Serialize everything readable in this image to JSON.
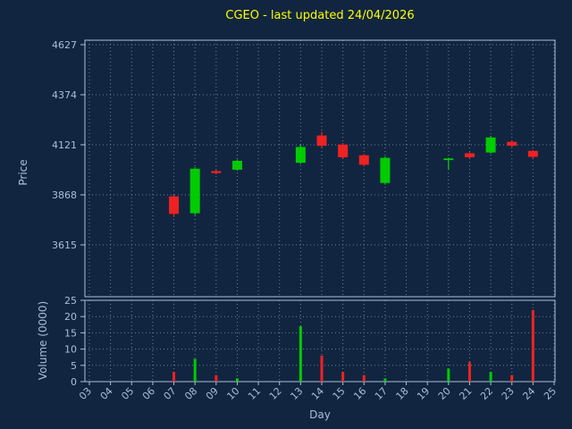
{
  "title": "CGEO - last updated 24/04/2026",
  "axes": {
    "price_label": "Price",
    "volume_label": "Volume (0000)",
    "x_label": "Day"
  },
  "colors": {
    "background": "#112540",
    "title": "#ffff00",
    "axis": "#a9bfd8",
    "grid": "#71808f",
    "up": "#00cc00",
    "down": "#ee2222"
  },
  "chart_data": {
    "type": "candlestick_with_volume",
    "title": "CGEO - last updated 24/04/2026",
    "xlabel": "Day",
    "ylabel_price": "Price",
    "ylabel_volume": "Volume (0000)",
    "legend": "none",
    "grid": "dotted",
    "price_axis": {
      "ticks": [
        3615,
        3868,
        4121,
        4374,
        4627
      ]
    },
    "volume_axis": {
      "ticks": [
        0,
        5,
        10,
        15,
        20,
        25
      ]
    },
    "x_tick_labels": [
      "03",
      "04",
      "05",
      "06",
      "07",
      "08",
      "09",
      "10",
      "11",
      "12",
      "13",
      "14",
      "15",
      "16",
      "17",
      "18",
      "19",
      "20",
      "21",
      "22",
      "23",
      "24",
      "25"
    ],
    "candles": [
      {
        "day": 7,
        "open": 3860,
        "high": 3868,
        "low": 3756,
        "close": 3772,
        "volume": 3
      },
      {
        "day": 8,
        "open": 3775,
        "high": 4008,
        "low": 3766,
        "close": 4000,
        "volume": 7
      },
      {
        "day": 9,
        "open": 3988,
        "high": 3994,
        "low": 3972,
        "close": 3978,
        "volume": 2
      },
      {
        "day": 10,
        "open": 3995,
        "high": 4046,
        "low": 3990,
        "close": 4040,
        "volume": 1
      },
      {
        "day": 13,
        "open": 4030,
        "high": 4122,
        "low": 4024,
        "close": 4110,
        "volume": 17
      },
      {
        "day": 14,
        "open": 4168,
        "high": 4186,
        "low": 4108,
        "close": 4116,
        "volume": 8
      },
      {
        "day": 15,
        "open": 4122,
        "high": 4130,
        "low": 4050,
        "close": 4058,
        "volume": 3
      },
      {
        "day": 16,
        "open": 4068,
        "high": 4074,
        "low": 4012,
        "close": 4020,
        "volume": 2
      },
      {
        "day": 17,
        "open": 3928,
        "high": 4062,
        "low": 3920,
        "close": 4055,
        "volume": 1
      },
      {
        "day": 20,
        "open": 4044,
        "high": 4056,
        "low": 3994,
        "close": 4052,
        "volume": 4
      },
      {
        "day": 21,
        "open": 4078,
        "high": 4084,
        "low": 4052,
        "close": 4058,
        "volume": 6
      },
      {
        "day": 22,
        "open": 4082,
        "high": 4166,
        "low": 4076,
        "close": 4158,
        "volume": 3
      },
      {
        "day": 23,
        "open": 4136,
        "high": 4142,
        "low": 4110,
        "close": 4116,
        "volume": 2
      },
      {
        "day": 24,
        "open": 4090,
        "high": 4094,
        "low": 4052,
        "close": 4060,
        "volume": 22
      }
    ]
  }
}
